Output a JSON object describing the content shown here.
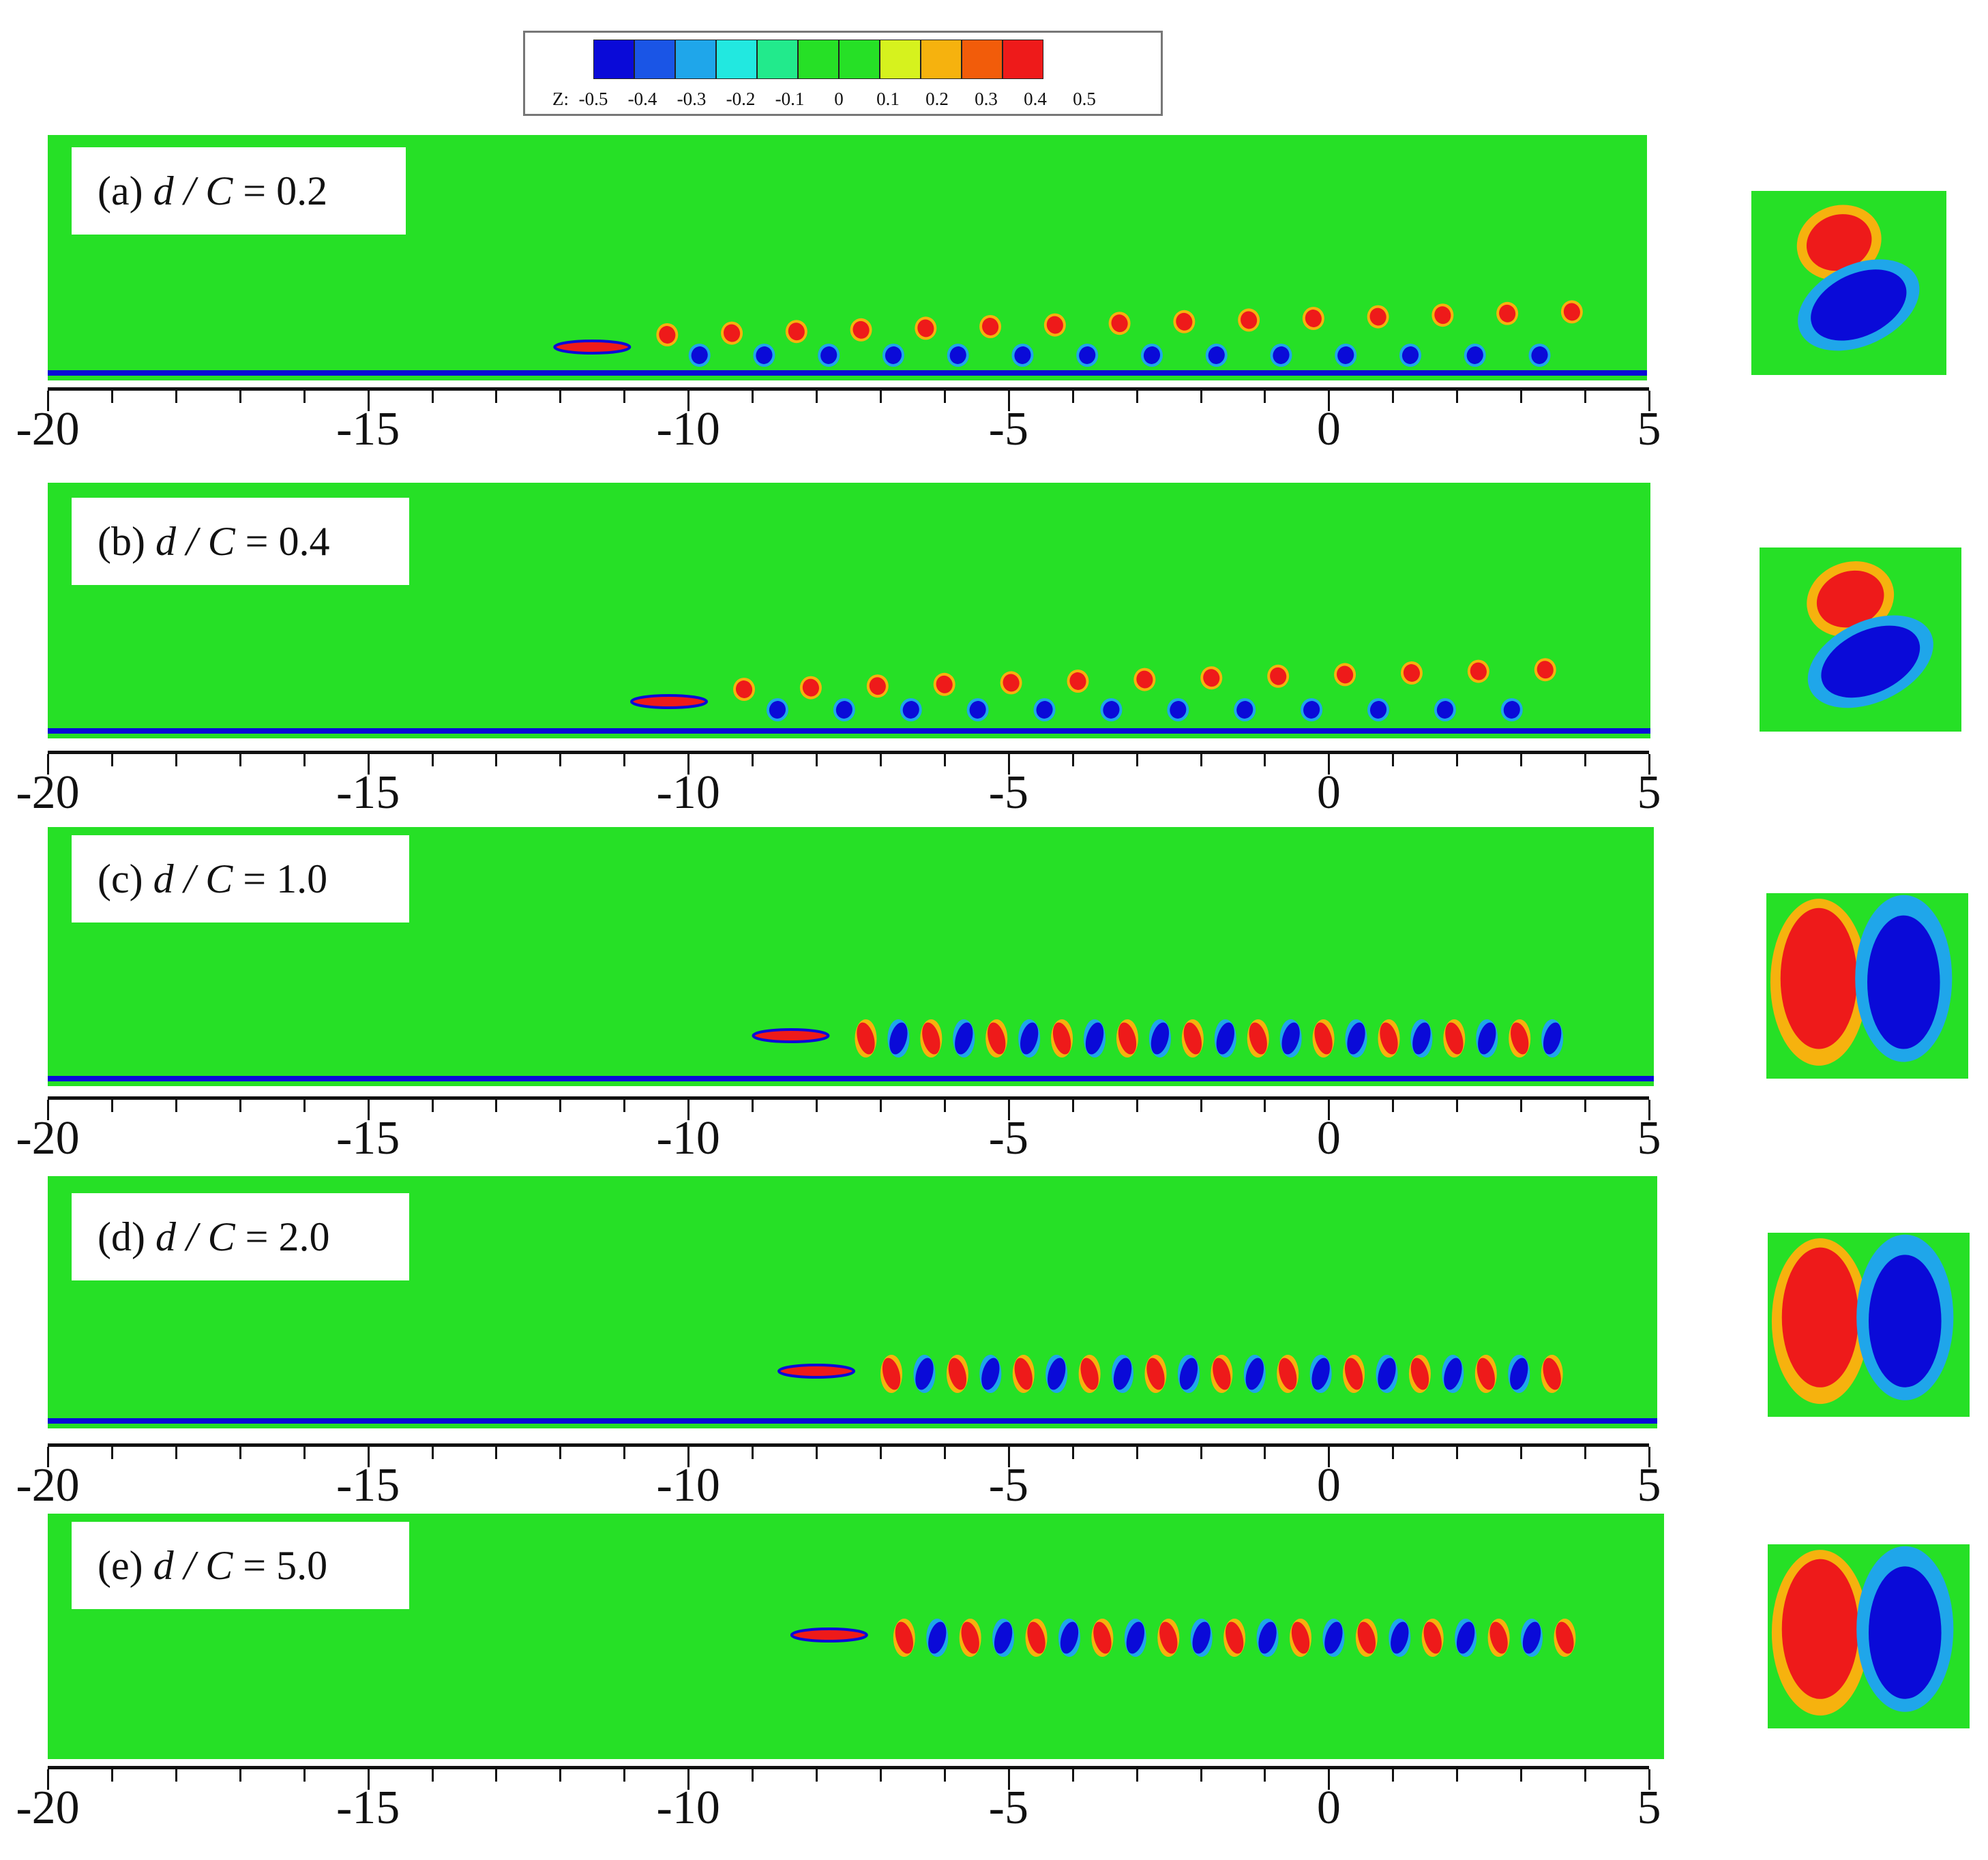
{
  "colorbar": {
    "label": "Z:",
    "ticks": [
      "-0.5",
      "-0.4",
      "-0.3",
      "-0.2",
      "-0.1",
      "0",
      "0.1",
      "0.2",
      "0.3",
      "0.4",
      "0.5"
    ],
    "colors": [
      "#0a0ad8",
      "#1a55e6",
      "#1fa6ea",
      "#22e8e0",
      "#22ea8c",
      "#26e026",
      "#26e026",
      "#d6f21e",
      "#f6b20e",
      "#f25c0a",
      "#ee1a1a"
    ]
  },
  "colors": {
    "field": "#26e026",
    "positive": "#ee1a1a",
    "negative": "#0a0ad8",
    "wall": "#0a0ad8"
  },
  "chart_data": {
    "type": "heatmap",
    "variable": "Z",
    "x_ticks": [
      "-20",
      "-15",
      "-10",
      "-5",
      "0",
      "5"
    ],
    "xlim": [
      -20,
      5
    ],
    "panels": [
      {
        "id": "a",
        "prefix": "(a) ",
        "var": "d / C",
        "eq": " = 0.2",
        "d_over_C": 0.2,
        "foil_x": -11.5,
        "wake_end_x": 4.3,
        "has_wall": true
      },
      {
        "id": "b",
        "prefix": "(b) ",
        "var": "d / C",
        "eq": " = 0.4",
        "d_over_C": 0.4,
        "foil_x": -10.3,
        "wake_end_x": 3.9,
        "has_wall": true
      },
      {
        "id": "c",
        "prefix": "(c) ",
        "var": "d / C",
        "eq": " = 1.0",
        "d_over_C": 1.0,
        "foil_x": -8.4,
        "wake_end_x": 4.0,
        "has_wall": true
      },
      {
        "id": "d",
        "prefix": "(d) ",
        "var": "d / C",
        "eq": " = 2.0",
        "d_over_C": 2.0,
        "foil_x": -8.0,
        "wake_end_x": 4.0,
        "has_wall": true
      },
      {
        "id": "e",
        "prefix": "(e) ",
        "var": "d / C",
        "eq": " = 5.0",
        "d_over_C": 5.0,
        "foil_x": -7.8,
        "wake_end_x": 4.2,
        "has_wall": false
      }
    ]
  }
}
